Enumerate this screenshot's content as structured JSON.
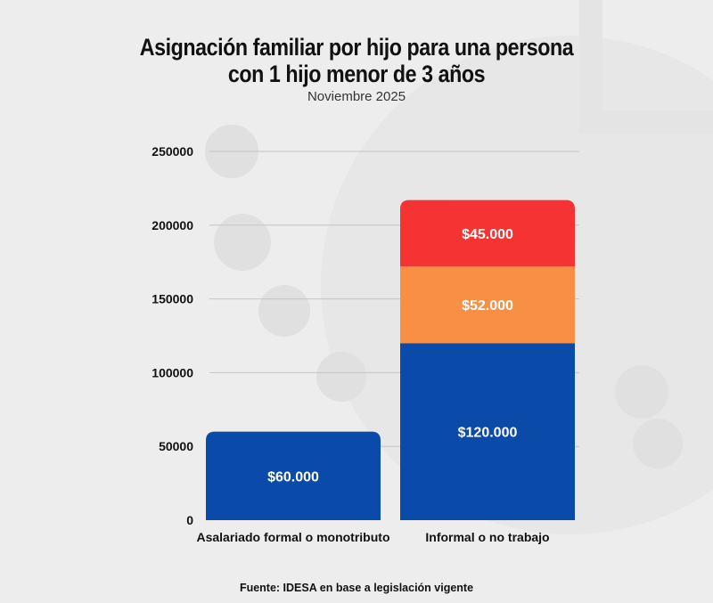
{
  "title": "Asignación familiar por hijo para una persona con 1 hijo menor de 3 años",
  "subtitle": "Noviembre 2025",
  "source": "Fuente: IDESA en base a legislación vigente",
  "chart_data": {
    "type": "bar",
    "stacked": true,
    "categories": [
      "Asalariado formal o monotributo",
      "Informal o no trabajo"
    ],
    "series": [
      {
        "values": [
          60000,
          120000
        ],
        "labels": [
          "$60.000",
          "$120.000"
        ],
        "color": "#0a4aa8"
      },
      {
        "values": [
          0,
          52000
        ],
        "labels": [
          "",
          "$52.000"
        ],
        "color": "#f78f45"
      },
      {
        "values": [
          0,
          45000
        ],
        "labels": [
          "",
          "$45.000"
        ],
        "color": "#f53333"
      }
    ],
    "ylim": [
      0,
      250000
    ],
    "yticks": [
      "0",
      "50000",
      "100000",
      "150000",
      "200000",
      "250000"
    ],
    "grid": true
  },
  "colors": {
    "grid": "#c4c4c4",
    "label_text": "#ffffff",
    "axis_text": "#111111"
  }
}
